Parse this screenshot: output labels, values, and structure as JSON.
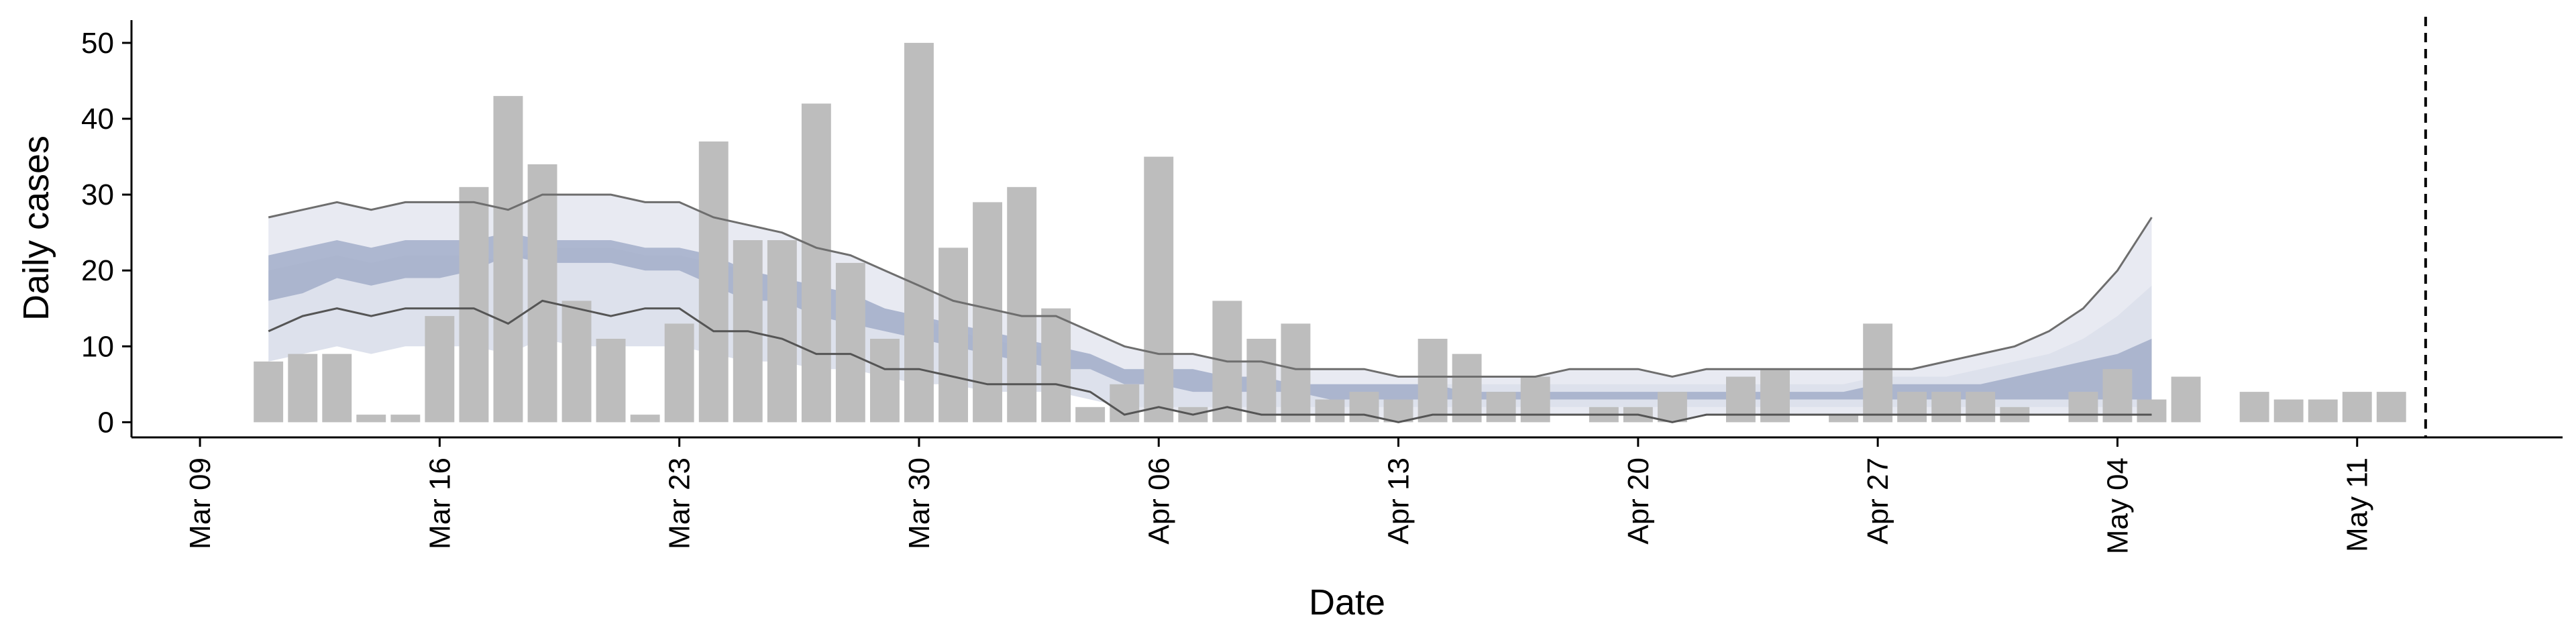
{
  "chart_data": {
    "type": "bar",
    "xlabel": "Date",
    "ylabel": "Daily cases",
    "ylim": [
      -2,
      53
    ],
    "xlim": [
      "2020-03-07",
      "2020-05-17"
    ],
    "grid": false,
    "y_ticks": [
      0,
      10,
      20,
      30,
      40,
      50
    ],
    "x_ticks": [
      {
        "date": "2020-03-09",
        "label": "Mar 09"
      },
      {
        "date": "2020-03-16",
        "label": "Mar 16"
      },
      {
        "date": "2020-03-23",
        "label": "Mar 23"
      },
      {
        "date": "2020-03-30",
        "label": "Mar 30"
      },
      {
        "date": "2020-04-06",
        "label": "Apr 06"
      },
      {
        "date": "2020-04-13",
        "label": "Apr 13"
      },
      {
        "date": "2020-04-20",
        "label": "Apr 20"
      },
      {
        "date": "2020-04-27",
        "label": "Apr 27"
      },
      {
        "date": "2020-05-04",
        "label": "May 04"
      },
      {
        "date": "2020-05-11",
        "label": "May 11"
      }
    ],
    "bars": {
      "color": "#bdbdbd",
      "first_date": "2020-03-11",
      "values": [
        8,
        9,
        9,
        1,
        1,
        14,
        31,
        43,
        34,
        16,
        11,
        1,
        13,
        37,
        24,
        24,
        42,
        21,
        11,
        50,
        23,
        29,
        31,
        15,
        2,
        5,
        35,
        2,
        16,
        11,
        13,
        3,
        4,
        3,
        11,
        9,
        4,
        6,
        0,
        2,
        2,
        4,
        0,
        6,
        7,
        0,
        1,
        13,
        4,
        4,
        4,
        2,
        0,
        4,
        7,
        3,
        6,
        0,
        4,
        3,
        3,
        4,
        4
      ]
    },
    "band_series": {
      "first_date": "2020-03-11",
      "outer_lower": [
        12,
        14,
        15,
        14,
        15,
        15,
        15,
        13,
        16,
        15,
        14,
        15,
        15,
        12,
        12,
        11,
        9,
        9,
        7,
        7,
        6,
        5,
        5,
        5,
        4,
        1,
        2,
        1,
        2,
        1,
        1,
        1,
        1,
        0,
        1,
        1,
        1,
        1,
        1,
        1,
        1,
        0,
        1,
        1,
        1,
        1,
        1,
        1,
        1,
        1,
        1,
        1,
        1,
        1,
        1,
        1
      ],
      "outer_upper": [
        27,
        28,
        29,
        28,
        29,
        29,
        29,
        28,
        30,
        30,
        30,
        29,
        29,
        27,
        26,
        25,
        23,
        22,
        20,
        18,
        16,
        15,
        14,
        14,
        12,
        10,
        9,
        9,
        8,
        8,
        7,
        7,
        7,
        6,
        6,
        6,
        6,
        6,
        7,
        7,
        7,
        6,
        7,
        7,
        7,
        7,
        7,
        7,
        7,
        8,
        9,
        10,
        12,
        15,
        20,
        27
      ],
      "mid_lower": [
        8,
        9,
        10,
        9,
        10,
        10,
        10,
        9,
        11,
        10,
        10,
        10,
        10,
        9,
        8,
        8,
        7,
        7,
        6,
        5,
        5,
        4,
        4,
        4,
        3,
        2,
        2,
        2,
        2,
        2,
        2,
        2,
        2,
        2,
        2,
        2,
        2,
        2,
        2,
        2,
        2,
        2,
        2,
        2,
        2,
        2,
        2,
        2,
        2,
        2,
        2,
        2,
        2,
        2,
        2,
        2
      ],
      "mid_upper": [
        20,
        21,
        22,
        21,
        22,
        22,
        22,
        21,
        23,
        23,
        23,
        22,
        22,
        21,
        20,
        19,
        18,
        17,
        15,
        14,
        12,
        11,
        10,
        10,
        9,
        7,
        7,
        7,
        6,
        6,
        5,
        5,
        5,
        5,
        5,
        5,
        5,
        5,
        5,
        5,
        5,
        5,
        5,
        5,
        5,
        5,
        5,
        6,
        6,
        6,
        7,
        8,
        9,
        11,
        14,
        18
      ],
      "inner_lower": [
        16,
        17,
        19,
        18,
        19,
        19,
        20,
        22,
        21,
        21,
        21,
        20,
        20,
        18,
        16,
        16,
        14,
        13,
        12,
        11,
        10,
        9,
        8,
        7,
        7,
        5,
        5,
        4,
        4,
        4,
        4,
        3,
        3,
        3,
        3,
        3,
        3,
        3,
        3,
        3,
        3,
        3,
        3,
        3,
        3,
        3,
        3,
        3,
        3,
        3,
        3,
        3,
        3,
        3,
        3,
        3
      ],
      "inner_upper": [
        22,
        23,
        24,
        23,
        24,
        24,
        24,
        25,
        24,
        24,
        24,
        23,
        23,
        22,
        20,
        19,
        18,
        17,
        15,
        14,
        13,
        12,
        11,
        10,
        9,
        7,
        7,
        7,
        6,
        6,
        5,
        5,
        5,
        5,
        5,
        4,
        4,
        4,
        4,
        4,
        4,
        4,
        4,
        4,
        4,
        4,
        4,
        5,
        5,
        5,
        5,
        6,
        7,
        8,
        9,
        11
      ],
      "outer_color": "#e8eaf2",
      "mid_color": "#dde1ec",
      "inner_color": "#9aa5c4",
      "line_color": "#6e6e6e"
    },
    "vline": {
      "date": "2020-05-13",
      "style": "dashed"
    }
  }
}
